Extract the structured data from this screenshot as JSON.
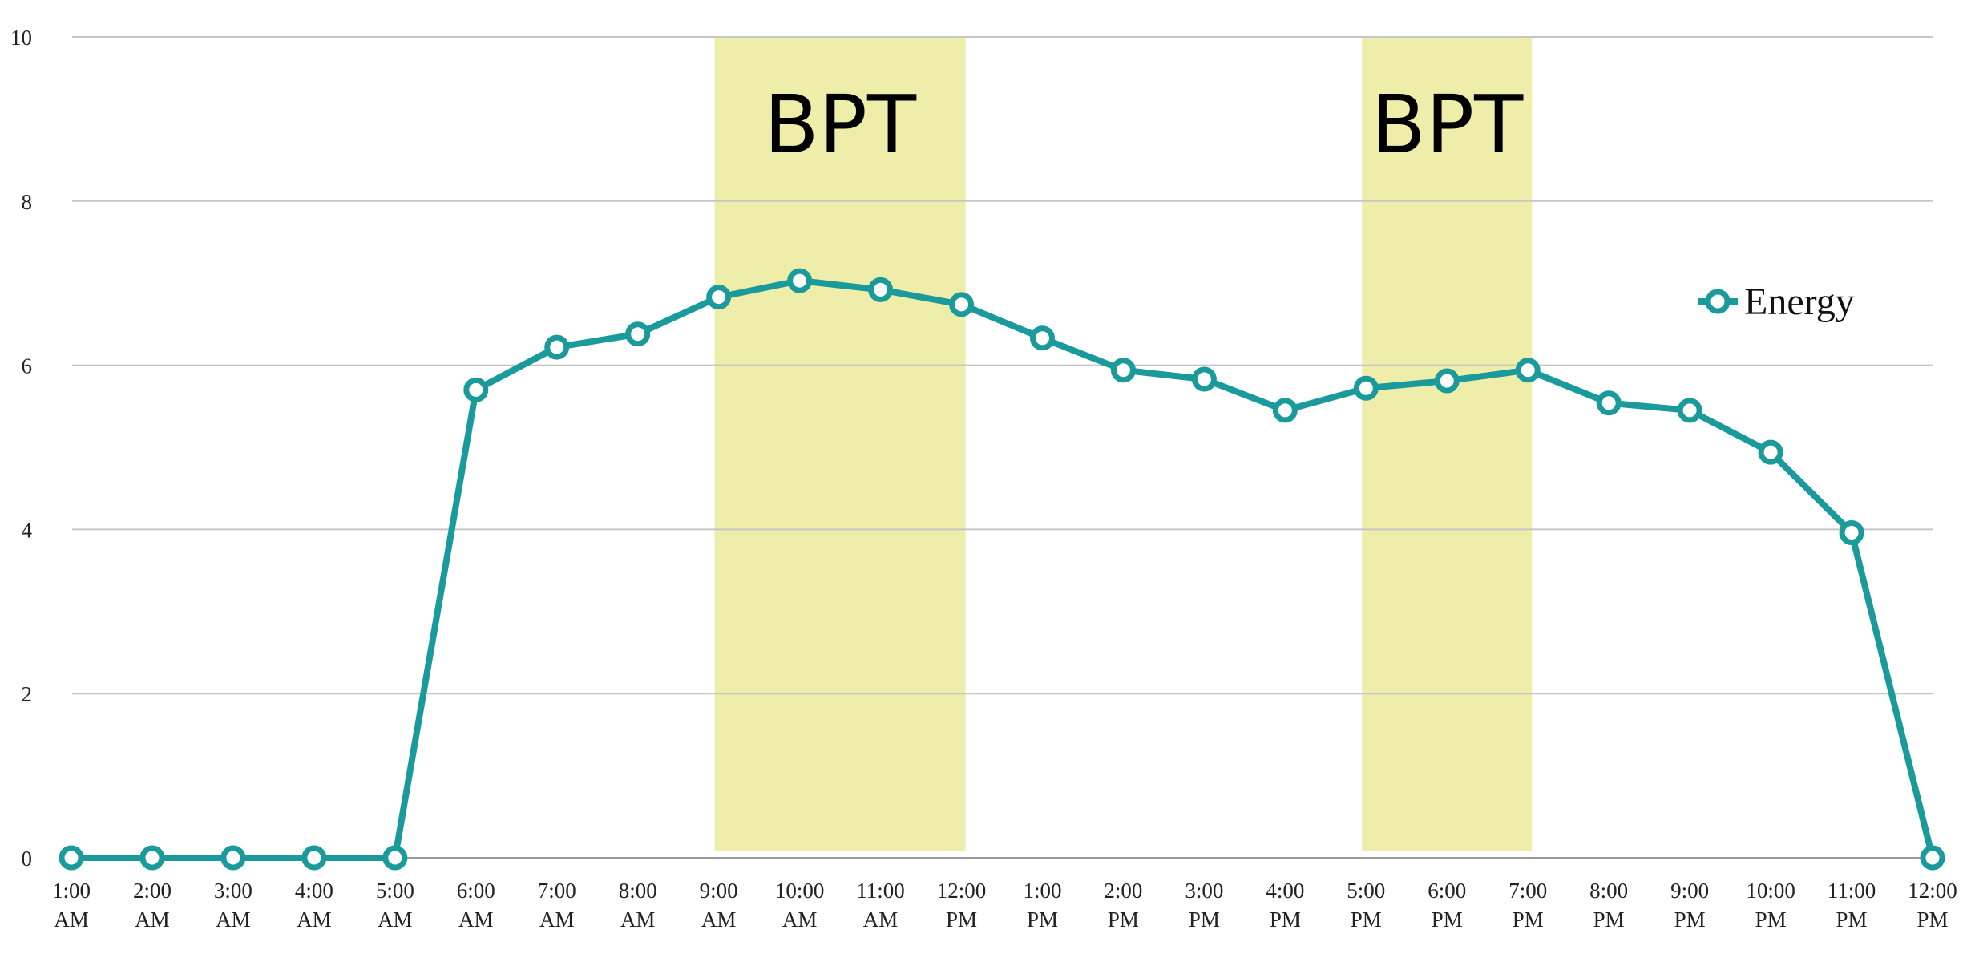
{
  "chart_data": {
    "type": "line",
    "ylim": [
      0,
      10
    ],
    "y_ticks": [
      "0",
      "2",
      "4",
      "6",
      "8",
      "10"
    ],
    "y_tick_values": [
      0,
      2,
      4,
      6,
      8,
      10
    ],
    "grid": "horizontal",
    "legend_position": "right",
    "categories": [
      [
        "1:00",
        "AM"
      ],
      [
        "2:00",
        "AM"
      ],
      [
        "3:00",
        "AM"
      ],
      [
        "4:00",
        "AM"
      ],
      [
        "5:00",
        "AM"
      ],
      [
        "6:00",
        "AM"
      ],
      [
        "7:00",
        "AM"
      ],
      [
        "8:00",
        "AM"
      ],
      [
        "9:00",
        "AM"
      ],
      [
        "10:00",
        "AM"
      ],
      [
        "11:00",
        "AM"
      ],
      [
        "12:00",
        "PM"
      ],
      [
        "1:00",
        "PM"
      ],
      [
        "2:00",
        "PM"
      ],
      [
        "3:00",
        "PM"
      ],
      [
        "4:00",
        "PM"
      ],
      [
        "5:00",
        "PM"
      ],
      [
        "6:00",
        "PM"
      ],
      [
        "7:00",
        "PM"
      ],
      [
        "8:00",
        "PM"
      ],
      [
        "9:00",
        "PM"
      ],
      [
        "10:00",
        "PM"
      ],
      [
        "11:00",
        "PM"
      ],
      [
        "12:00",
        "PM"
      ]
    ],
    "series": [
      {
        "name": "Energy",
        "color": "#1a9a9a",
        "values": [
          0,
          0,
          0,
          0,
          0,
          5.7,
          6.22,
          6.38,
          6.83,
          7.03,
          6.92,
          6.74,
          6.33,
          5.94,
          5.83,
          5.45,
          5.72,
          5.81,
          5.94,
          5.54,
          5.45,
          4.94,
          3.96,
          0
        ]
      }
    ],
    "highlight_bands": [
      {
        "label": "BPT",
        "from_index": 8,
        "to_index": 11,
        "color": "#eeeeaa"
      },
      {
        "label": "BPT",
        "from_index": 16,
        "to_index": 18,
        "color": "#eeeeaa"
      }
    ]
  }
}
